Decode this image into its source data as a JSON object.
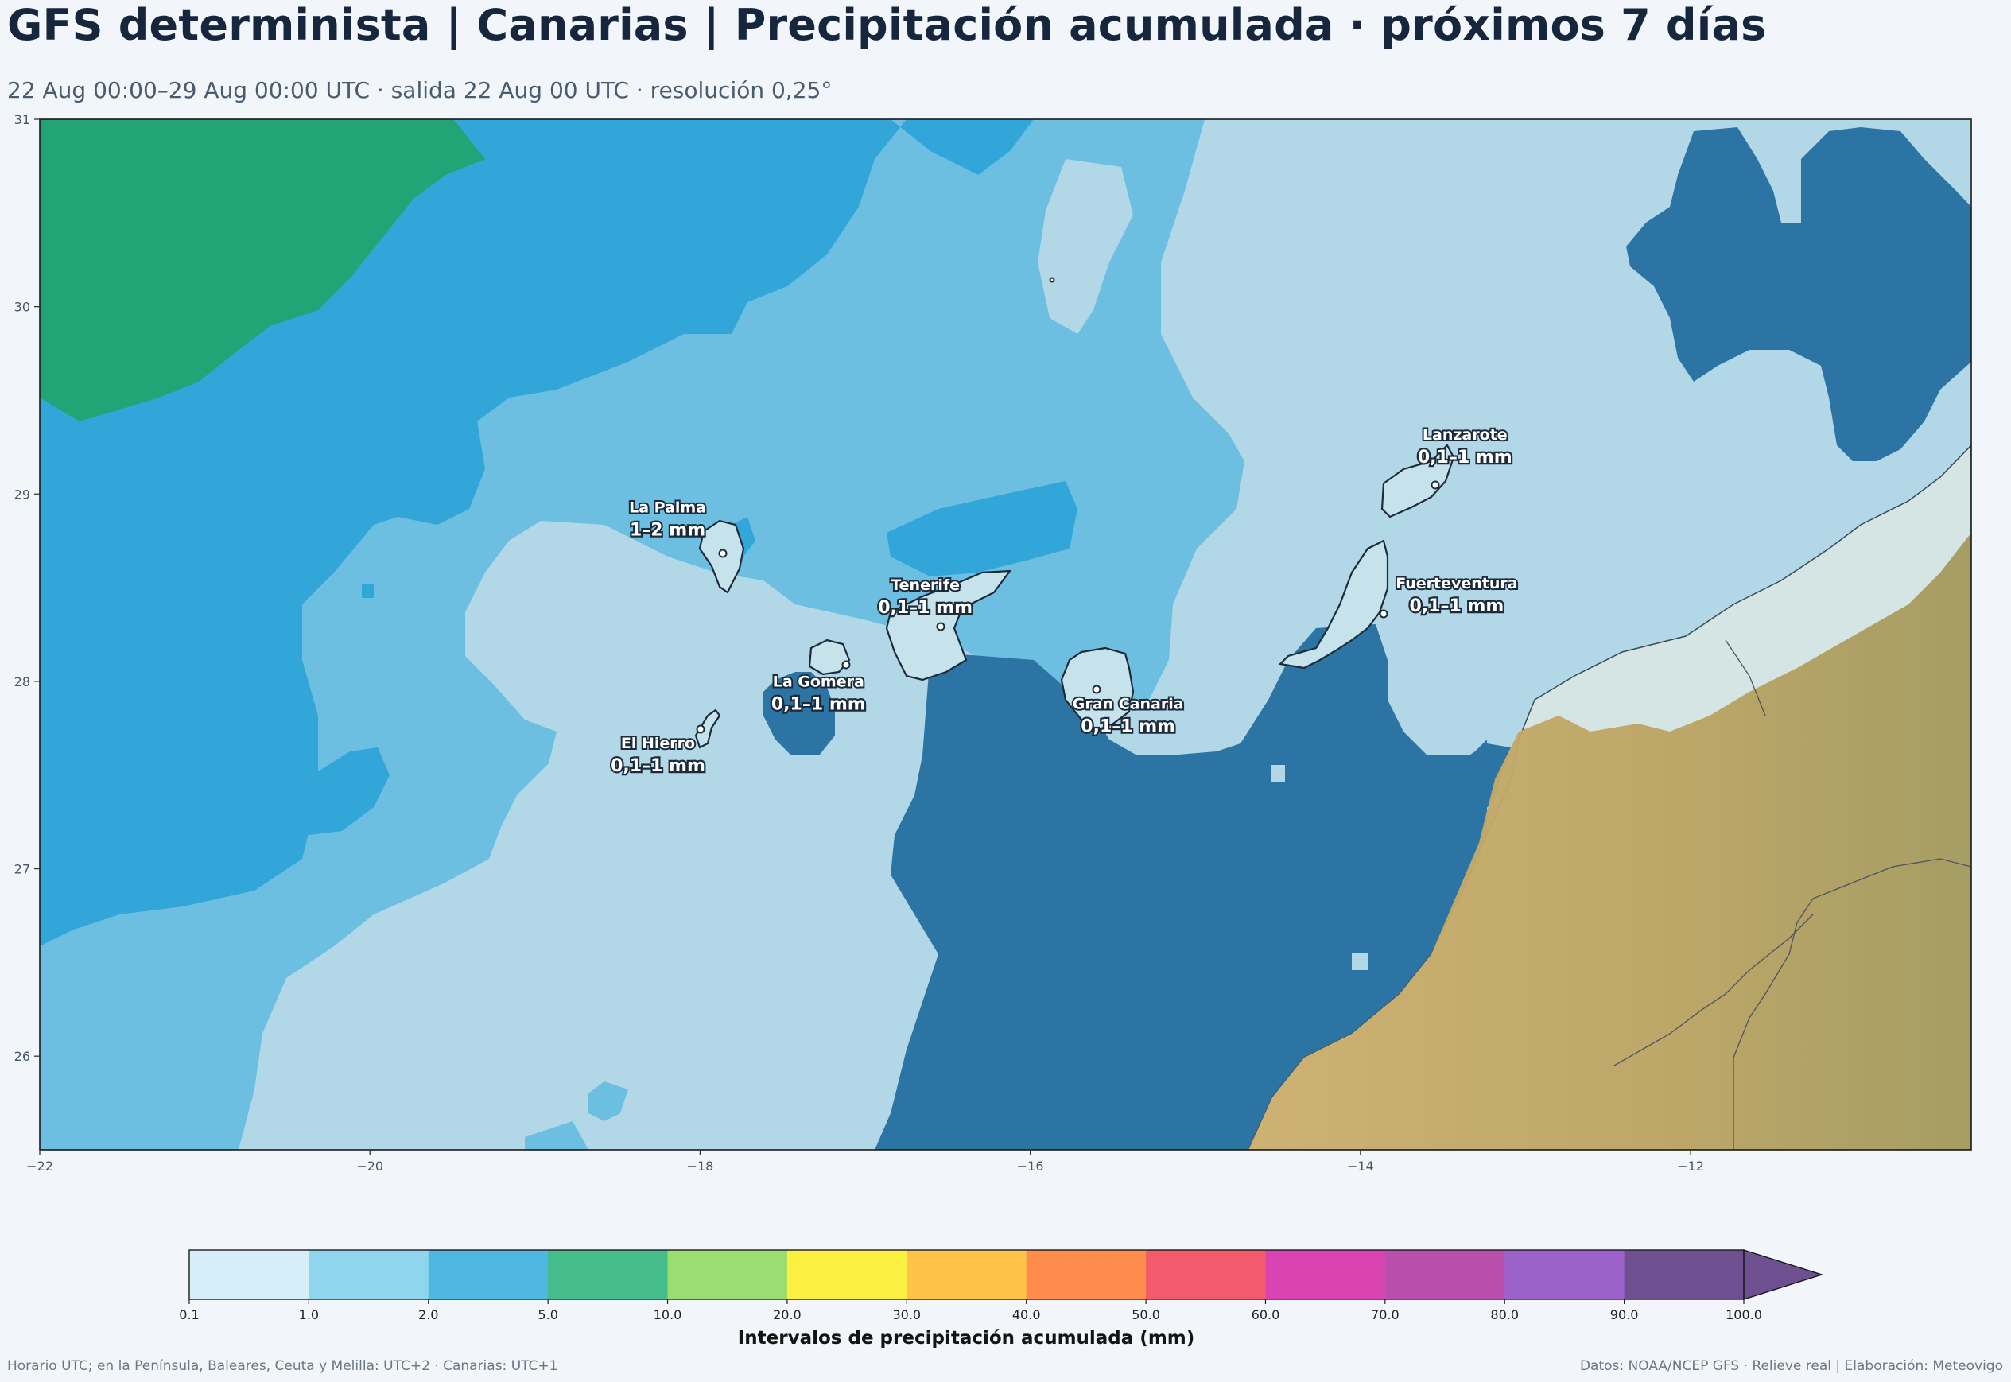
{
  "title": "GFS determinista | Canarias | Precipitación acumulada · próximos 7 días",
  "subtitle": "22 Aug 00:00–29 Aug 00:00 UTC · salida 22 Aug 00 UTC · resolución 0,25°",
  "map": {
    "extent": {
      "lon_min": -22,
      "lon_max": -10.3,
      "lat_min": 25.5,
      "lat_max": 31
    },
    "x_ticks": [
      -22,
      -20,
      -18,
      -16,
      -14,
      -12
    ],
    "y_ticks": [
      26,
      27,
      28,
      29,
      30,
      31
    ],
    "x_tick_labels": [
      "−22",
      "−20",
      "−18",
      "−16",
      "−14",
      "−12"
    ],
    "y_tick_labels": [
      "26",
      "27",
      "28",
      "29",
      "30",
      "31"
    ],
    "islands": [
      {
        "name": "La Palma",
        "value": "1–2 mm",
        "lon": -17.85,
        "lat": 28.68
      },
      {
        "name": "Tenerife",
        "value": "0,1–1 mm",
        "lon": -16.53,
        "lat": 28.3
      },
      {
        "name": "La Gomera",
        "value": "0,1–1 mm",
        "lon": -17.1,
        "lat": 28.09
      },
      {
        "name": "El Hierro",
        "value": "0,1–1 mm",
        "lon": -17.99,
        "lat": 27.75
      },
      {
        "name": "Gran Canaria",
        "value": "0,1–1 mm",
        "lon": -15.6,
        "lat": 27.96
      },
      {
        "name": "Lanzarote",
        "value": "0,1–1 mm",
        "lon": -13.55,
        "lat": 29.04
      },
      {
        "name": "Fuerteventura",
        "value": "0,1–1 mm",
        "lon": -13.86,
        "lat": 28.36
      }
    ]
  },
  "colorbar": {
    "label": "Intervalos de precipitación acumulada (mm)",
    "boundaries": [
      "0.1",
      "1.0",
      "2.0",
      "5.0",
      "10.0",
      "20.0",
      "30.0",
      "40.0",
      "50.0",
      "60.0",
      "70.0",
      "80.0",
      "90.0",
      "100.0"
    ],
    "colors": [
      "#d6eef7",
      "#8fd5ee",
      "#4fb8e2",
      "#45bd8a",
      "#9ade72",
      "#fcf041",
      "#ffc34a",
      "#ff8b4c",
      "#f25b6c",
      "#d944b2",
      "#b84fac",
      "#9b62c9",
      "#6e4f8f"
    ],
    "extend_color": "#6e4f8f"
  },
  "field_colors": {
    "lt_0_1": "#b2d8e8",
    "0_1_1": "#6cbfe0",
    "1_2": "#32a5d9",
    "2_5": "#22a477",
    "sea_dark": "#2c74a3",
    "land_relief": "#c3a96a"
  },
  "footer": {
    "left": "Horario UTC; en la Península, Baleares, Ceuta y Melilla: UTC+2 · Canarias: UTC+1",
    "right": "Datos: NOAA/NCEP GFS · Relieve real | Elaboración: Meteovigo"
  }
}
